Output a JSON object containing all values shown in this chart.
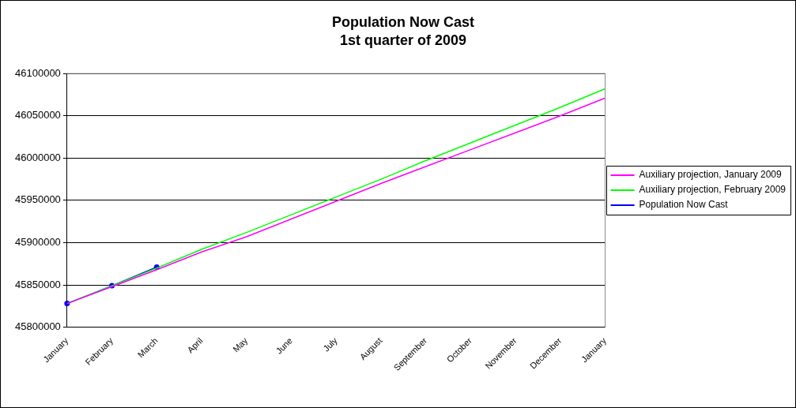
{
  "chart_data": {
    "type": "line",
    "title": "Population Now Cast",
    "subtitle": "1st quarter of 2009",
    "categories": [
      "January",
      "February",
      "March",
      "April",
      "May",
      "June",
      "July",
      "August",
      "September",
      "October",
      "November",
      "December",
      "January"
    ],
    "ylim": [
      45800000,
      46100000
    ],
    "yticks": [
      45800000,
      45850000,
      45900000,
      45950000,
      46000000,
      46050000,
      46100000
    ],
    "grid": "y",
    "legend": "right",
    "line_style": "solid",
    "series": [
      {
        "name": "Auxiliary projection, January 2009",
        "color": "#ff00ff",
        "marker": "none",
        "values": [
          45828000,
          45848000,
          45868000,
          45889000,
          45907000,
          45928000,
          45949000,
          45970000,
          45990000,
          46010000,
          46030000,
          46050000,
          46071000
        ]
      },
      {
        "name": "Auxiliary projection, February 2009",
        "color": "#00ff00",
        "marker": "none",
        "values": [
          45828000,
          45849000,
          45870000,
          45892000,
          45912000,
          45933000,
          45954000,
          45975000,
          45997000,
          46018000,
          46039000,
          46060000,
          46082000
        ]
      },
      {
        "name": "Population Now Cast",
        "color": "#0000ff",
        "marker": "circle",
        "values": [
          45828000,
          45849000,
          45871000,
          null,
          null,
          null,
          null,
          null,
          null,
          null,
          null,
          null,
          null
        ]
      }
    ]
  }
}
